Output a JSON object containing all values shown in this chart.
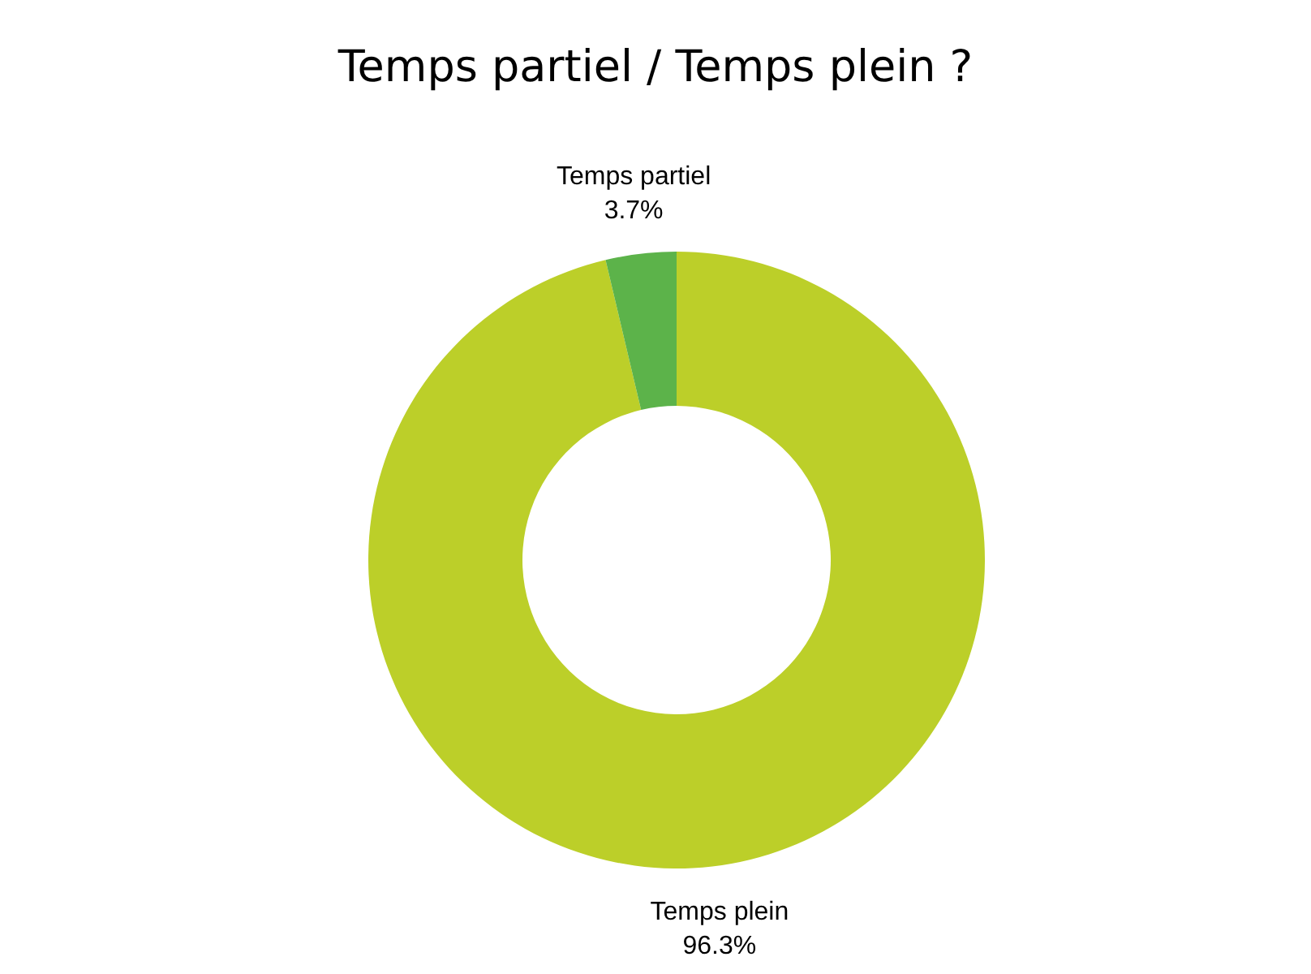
{
  "chart_data": {
    "type": "donut",
    "title": "Temps partiel / Temps plein ?",
    "categories": [
      "Temps plein",
      "Temps partiel"
    ],
    "values": [
      96.3,
      3.7
    ],
    "colors": [
      "#bccf29",
      "#5cb34a"
    ],
    "value_labels": [
      "96.3%",
      "3.7%"
    ],
    "legend": false
  }
}
